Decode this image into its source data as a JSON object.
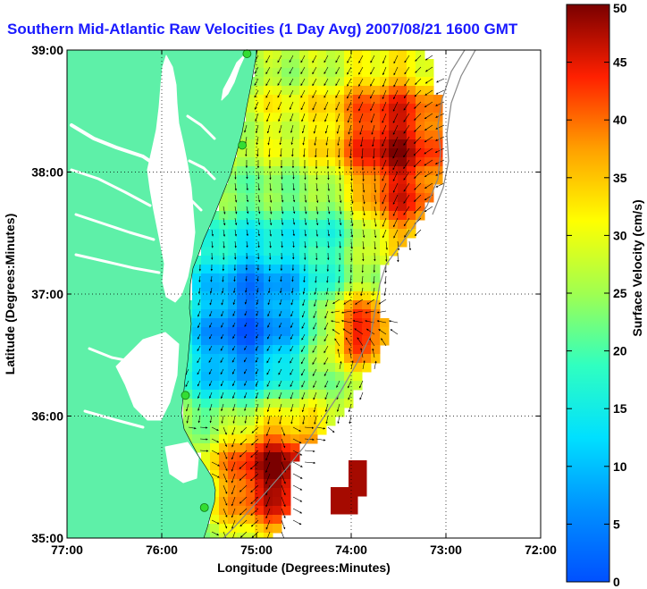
{
  "title": "Southern Mid-Atlantic Raw Velocities (1 Day Avg) 2007/08/21 1600 GMT",
  "xlabel": "Longitude (Degrees:Minutes)",
  "ylabel": "Latitude (Degrees:Minutes)",
  "colorbar_label": "Surface Velocity (cm/s)",
  "x_ticks": [
    "77:00",
    "76:00",
    "75:00",
    "74:00",
    "73:00",
    "72:00"
  ],
  "y_ticks": [
    "39:00",
    "38:00",
    "37:00",
    "36:00",
    "35:00"
  ],
  "colorbar_ticks": [
    "0",
    "5",
    "10",
    "15",
    "20",
    "25",
    "30",
    "35",
    "40",
    "45",
    "50"
  ],
  "colors": {
    "land": "#5ef0a8",
    "ocean_bg": "#ffffff",
    "title_text": "#1a1aff",
    "station_marker": "#33dd33"
  },
  "chart_data": {
    "type": "heatmap",
    "title": "Southern Mid-Atlantic Raw Velocities (1 Day Avg) 2007/08/21 1600 GMT",
    "xlabel": "Longitude (Degrees:Minutes)",
    "ylabel": "Latitude (Degrees:Minutes)",
    "xlim": [
      -77,
      -72
    ],
    "ylim": [
      35,
      39
    ],
    "color_scale": {
      "label": "Surface Velocity (cm/s)",
      "min": 0,
      "max": 50,
      "colormap": "jet"
    },
    "grid": true,
    "station_markers": [
      {
        "lon": -75.1,
        "lat": 38.97
      },
      {
        "lon": -75.15,
        "lat": 38.22
      },
      {
        "lon": -75.75,
        "lat": 36.17
      },
      {
        "lon": -75.55,
        "lat": 35.25
      }
    ]
  }
}
